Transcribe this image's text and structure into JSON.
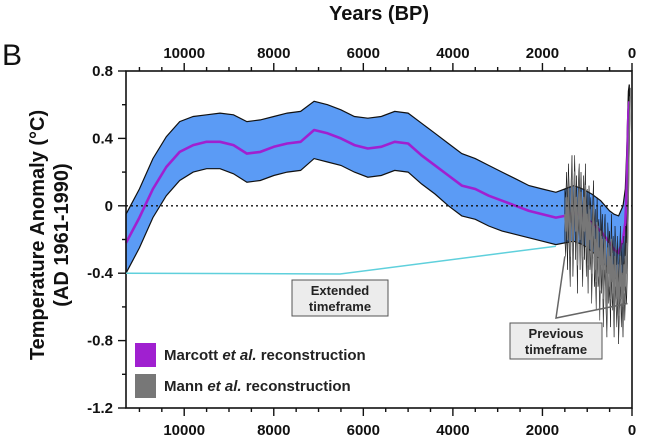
{
  "chart_data": {
    "type": "line",
    "panel_label": "B",
    "title": "",
    "xlabel": "Years (BP)",
    "ylabel": "Temperature Anomaly (°C)",
    "ylabel_line2": "(AD 1961-1990)",
    "x_axis_reversed": true,
    "xlim": [
      11300,
      0
    ],
    "ylim": [
      -1.2,
      0.8
    ],
    "x_ticks": [
      10000,
      8000,
      6000,
      4000,
      2000,
      0
    ],
    "x_tick_labels": [
      "10000",
      "8000",
      "6000",
      "4000",
      "2000",
      "0"
    ],
    "x_top_tick_labels": [
      "10000",
      "8000",
      "6000",
      "4000",
      "2000",
      "0"
    ],
    "y_ticks": [
      0.8,
      0.4,
      0,
      -0.4,
      -0.8,
      -1.2
    ],
    "y_tick_labels": [
      "0.8",
      "0.4",
      "0",
      "-0.4",
      "-0.8",
      "-1.2"
    ],
    "zero_reference_line": "dotted",
    "series": [
      {
        "name_parts": [
          "Marcott ",
          "et al.",
          " reconstruction"
        ],
        "color": "#a020d0",
        "band_color": "#5b9bf5",
        "x": [
          11300,
          11000,
          10700,
          10400,
          10100,
          9800,
          9500,
          9200,
          8900,
          8600,
          8300,
          8000,
          7700,
          7400,
          7100,
          6800,
          6500,
          6200,
          5900,
          5600,
          5300,
          5000,
          4700,
          4400,
          4100,
          3800,
          3500,
          3200,
          2900,
          2600,
          2300,
          2000,
          1700,
          1500,
          1300,
          1100,
          900,
          700,
          500,
          400,
          300,
          200,
          150,
          120,
          100,
          80,
          60
        ],
        "y": [
          -0.22,
          -0.07,
          0.1,
          0.23,
          0.32,
          0.36,
          0.38,
          0.38,
          0.36,
          0.31,
          0.32,
          0.35,
          0.37,
          0.38,
          0.45,
          0.43,
          0.4,
          0.36,
          0.34,
          0.35,
          0.38,
          0.37,
          0.3,
          0.24,
          0.18,
          0.12,
          0.1,
          0.06,
          0.03,
          0.0,
          -0.03,
          -0.05,
          -0.07,
          -0.06,
          -0.04,
          -0.06,
          -0.1,
          -0.15,
          -0.22,
          -0.26,
          -0.28,
          -0.2,
          -0.1,
          0.1,
          0.3,
          0.55,
          0.62
        ],
        "upper": [
          -0.05,
          0.1,
          0.28,
          0.41,
          0.5,
          0.53,
          0.54,
          0.55,
          0.54,
          0.5,
          0.51,
          0.53,
          0.55,
          0.56,
          0.62,
          0.6,
          0.57,
          0.53,
          0.52,
          0.53,
          0.56,
          0.55,
          0.49,
          0.43,
          0.37,
          0.31,
          0.28,
          0.24,
          0.2,
          0.16,
          0.12,
          0.1,
          0.08,
          0.1,
          0.12,
          0.1,
          0.07,
          0.03,
          -0.03,
          -0.05,
          -0.06,
          0.0,
          0.1,
          0.3,
          0.5,
          0.68,
          0.72
        ],
        "lower": [
          -0.4,
          -0.25,
          -0.07,
          0.06,
          0.15,
          0.2,
          0.22,
          0.22,
          0.19,
          0.14,
          0.15,
          0.18,
          0.2,
          0.21,
          0.28,
          0.26,
          0.24,
          0.2,
          0.17,
          0.18,
          0.21,
          0.2,
          0.13,
          0.07,
          0.0,
          -0.06,
          -0.08,
          -0.12,
          -0.15,
          -0.17,
          -0.19,
          -0.21,
          -0.23,
          -0.22,
          -0.21,
          -0.23,
          -0.27,
          -0.32,
          -0.38,
          -0.42,
          -0.45,
          -0.4,
          -0.3,
          -0.1,
          0.15,
          0.4,
          0.5
        ]
      },
      {
        "name_parts": [
          "Mann ",
          "et al.",
          " reconstruction"
        ],
        "color": "#777777",
        "band_color": "#555555",
        "x": [
          1500,
          1480,
          1460,
          1440,
          1420,
          1400,
          1380,
          1360,
          1340,
          1320,
          1300,
          1280,
          1260,
          1240,
          1220,
          1200,
          1180,
          1160,
          1140,
          1120,
          1100,
          1080,
          1060,
          1040,
          1020,
          1000,
          980,
          960,
          940,
          920,
          900,
          880,
          860,
          840,
          820,
          800,
          780,
          760,
          740,
          720,
          700,
          680,
          660,
          640,
          620,
          600,
          580,
          560,
          540,
          520,
          500,
          480,
          460,
          440,
          420,
          400,
          380,
          360,
          340,
          320,
          300,
          280,
          260,
          240,
          220,
          200,
          180,
          160,
          140,
          120,
          100,
          80,
          60,
          40
        ],
        "y": [
          -0.05,
          -0.15,
          0.05,
          -0.2,
          0.1,
          -0.1,
          -0.3,
          0.0,
          0.15,
          -0.25,
          -0.05,
          0.2,
          -0.15,
          0.05,
          -0.35,
          0.0,
          0.1,
          -0.2,
          0.08,
          -0.1,
          -0.3,
          0.05,
          -0.15,
          0.12,
          -0.25,
          -0.05,
          -0.35,
          0.0,
          -0.2,
          -0.1,
          -0.4,
          -0.15,
          0.0,
          -0.3,
          -0.2,
          -0.45,
          -0.1,
          -0.3,
          -0.25,
          -0.5,
          -0.15,
          -0.35,
          -0.2,
          -0.55,
          -0.3,
          -0.2,
          -0.45,
          -0.6,
          -0.25,
          -0.4,
          -0.3,
          -0.55,
          -0.2,
          -0.45,
          -0.35,
          -0.6,
          -0.3,
          -0.4,
          -0.55,
          -0.35,
          -0.65,
          -0.45,
          -0.3,
          -0.55,
          -0.4,
          -0.6,
          -0.35,
          -0.5,
          -0.3,
          -0.4,
          -0.2,
          0.1,
          0.45,
          0.65
        ],
        "upper": [
          0.1,
          0.05,
          0.2,
          0.0,
          0.25,
          0.1,
          -0.1,
          0.15,
          0.3,
          -0.05,
          0.12,
          0.3,
          0.02,
          0.18,
          -0.15,
          0.15,
          0.25,
          0.0,
          0.2,
          0.05,
          -0.12,
          0.18,
          0.02,
          0.25,
          -0.05,
          0.1,
          -0.15,
          0.12,
          -0.02,
          0.05,
          -0.2,
          0.0,
          0.15,
          -0.12,
          -0.02,
          -0.25,
          0.05,
          -0.12,
          -0.08,
          -0.3,
          0.0,
          -0.18,
          -0.05,
          -0.35,
          -0.12,
          -0.05,
          -0.28,
          -0.4,
          -0.1,
          -0.22,
          -0.15,
          -0.35,
          -0.05,
          -0.28,
          -0.18,
          -0.4,
          -0.12,
          -0.22,
          -0.35,
          -0.18,
          -0.45,
          -0.28,
          -0.12,
          -0.35,
          -0.22,
          -0.4,
          -0.18,
          -0.3,
          -0.12,
          -0.22,
          -0.02,
          0.25,
          0.58,
          0.7
        ],
        "lower": [
          -0.2,
          -0.3,
          -0.12,
          -0.38,
          -0.08,
          -0.28,
          -0.48,
          -0.18,
          -0.02,
          -0.42,
          -0.22,
          0.05,
          -0.32,
          -0.12,
          -0.52,
          -0.18,
          -0.08,
          -0.38,
          -0.1,
          -0.28,
          -0.48,
          -0.12,
          -0.32,
          -0.05,
          -0.42,
          -0.22,
          -0.52,
          -0.18,
          -0.38,
          -0.28,
          -0.58,
          -0.32,
          -0.18,
          -0.48,
          -0.38,
          -0.62,
          -0.28,
          -0.48,
          -0.42,
          -0.68,
          -0.32,
          -0.52,
          -0.38,
          -0.72,
          -0.48,
          -0.38,
          -0.62,
          -0.78,
          -0.42,
          -0.58,
          -0.48,
          -0.72,
          -0.38,
          -0.62,
          -0.52,
          -0.78,
          -0.48,
          -0.58,
          -0.72,
          -0.52,
          -0.82,
          -0.62,
          -0.48,
          -0.72,
          -0.58,
          -0.78,
          -0.52,
          -0.68,
          -0.48,
          -0.58,
          -0.38,
          -0.05,
          0.3,
          0.55
        ]
      }
    ],
    "annotations": [
      {
        "lines": [
          "Extended",
          "timeframe"
        ],
        "points_to_x": [
          11300,
          1700
        ],
        "points_to_y": [
          -0.4,
          -0.24
        ],
        "line_color": "#5fd0dc"
      },
      {
        "lines": [
          "Previous",
          "timeframe"
        ],
        "points_to_x": [
          1500,
          100
        ],
        "points_to_y": [
          -0.3,
          -0.58
        ],
        "line_color": "#666666"
      }
    ],
    "legend_placement": "bottom-left"
  }
}
